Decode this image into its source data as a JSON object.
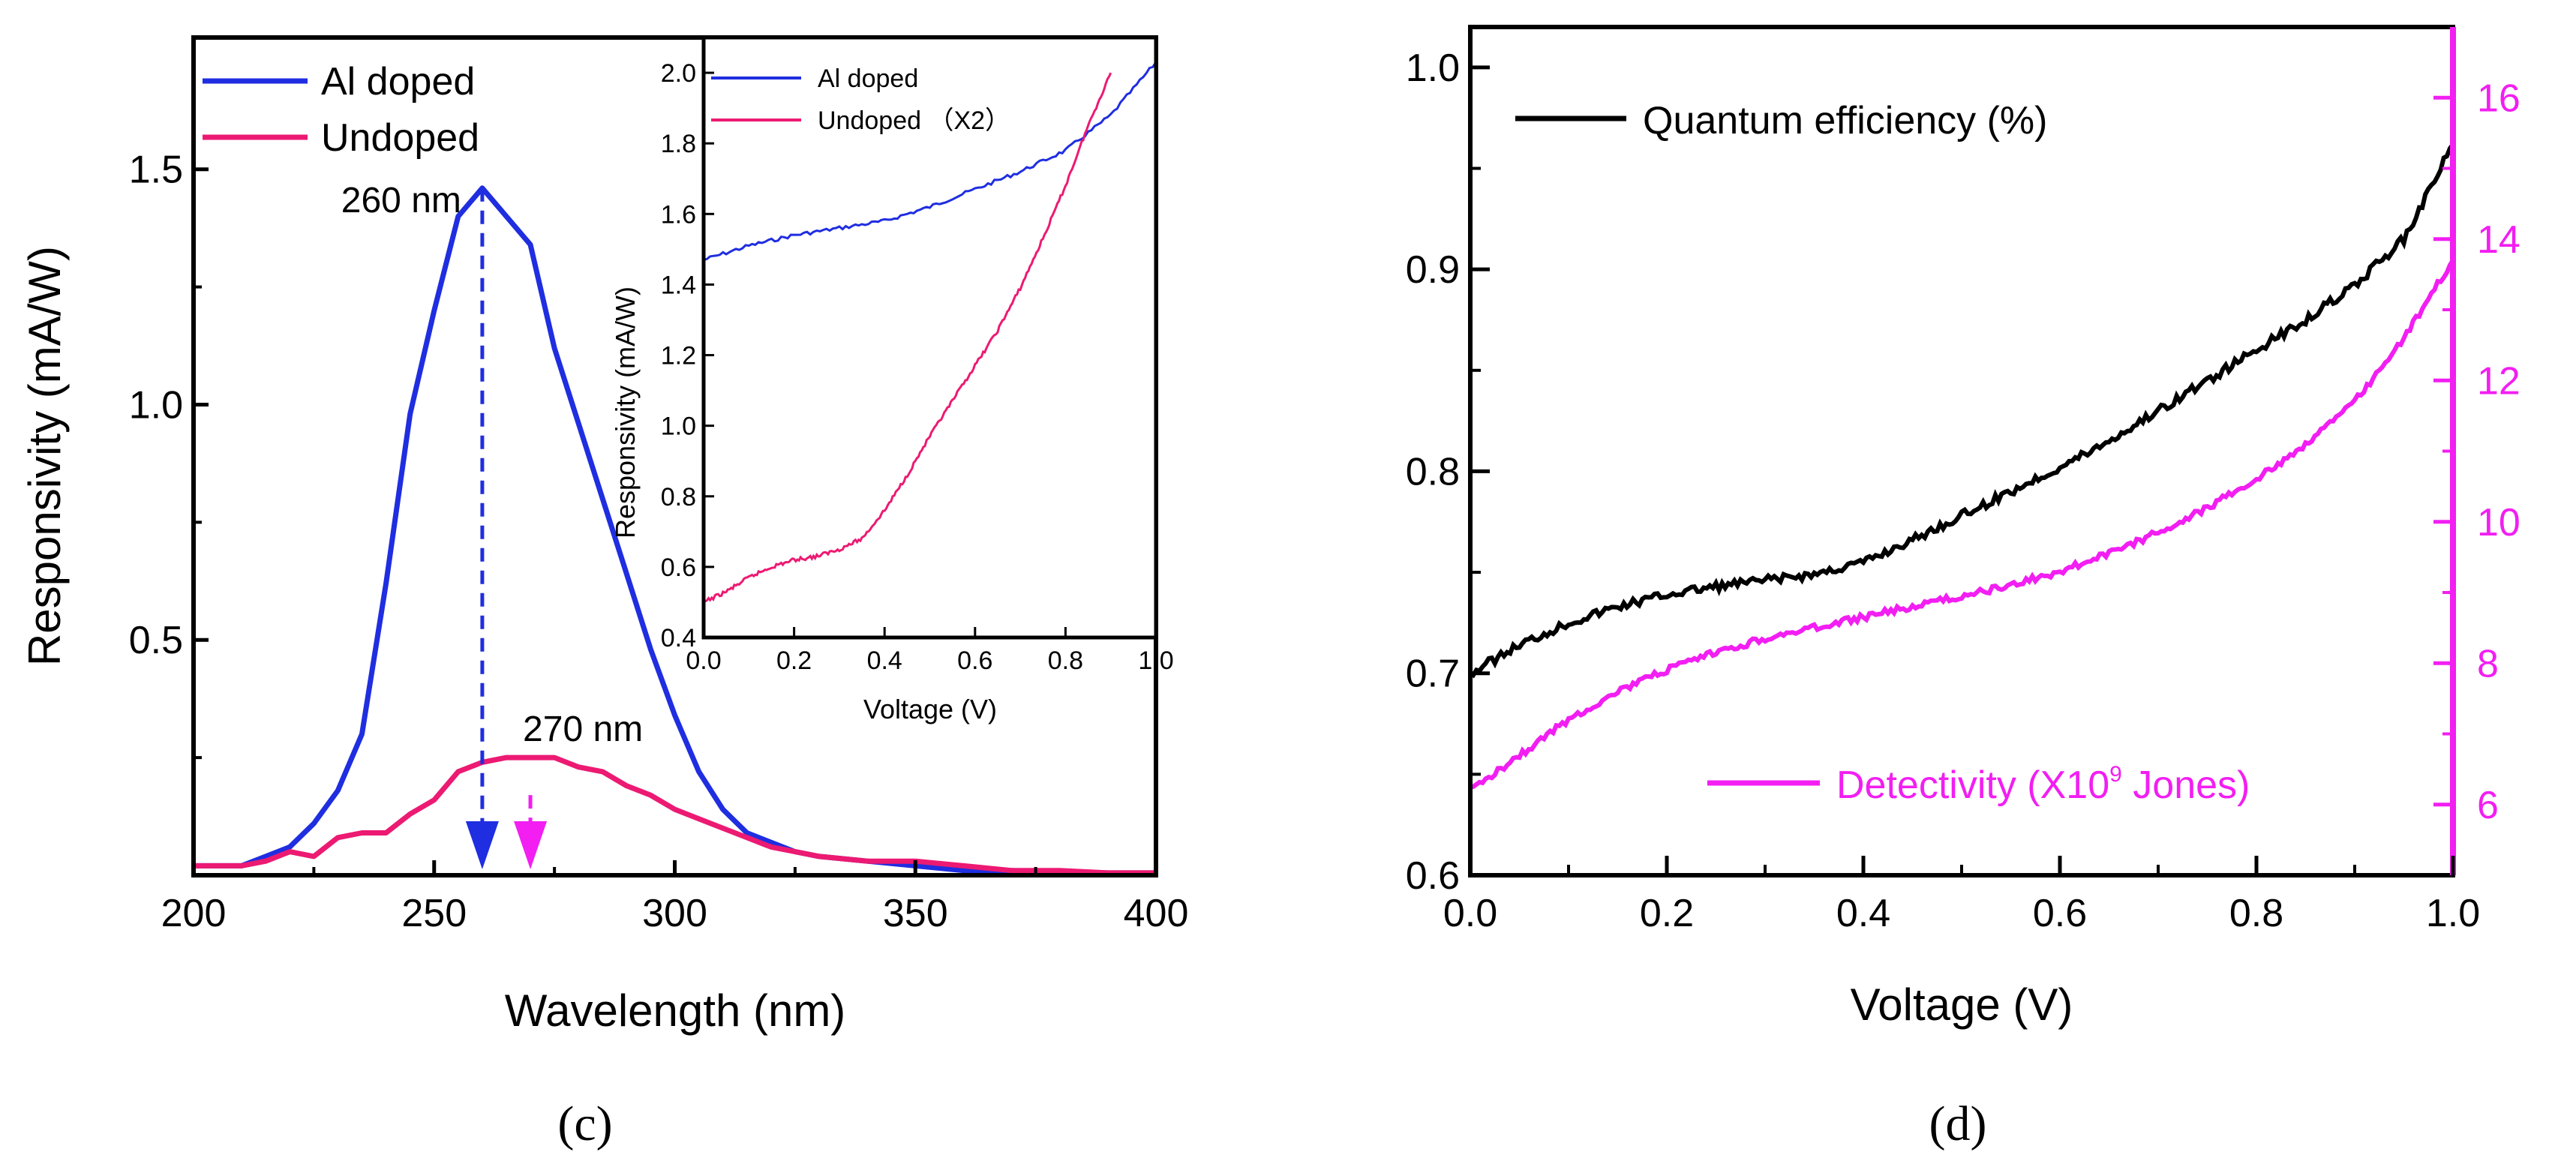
{
  "colors": {
    "blue": "#1f2ee0",
    "pink": "#ec1a72",
    "magenta": "#f21ef2",
    "black": "#000000"
  },
  "chart_data": [
    {
      "id": "c_main",
      "type": "line",
      "panel_label": "(c)",
      "xlabel": "Wavelength (nm)",
      "ylabel": "Responsivity (mA/W)",
      "xlim": [
        200,
        400
      ],
      "ylim": [
        0,
        1.78
      ],
      "xticks": [
        200,
        250,
        300,
        350,
        400
      ],
      "yticks": [
        0.5,
        1.0,
        1.5
      ],
      "xtick_labels": [
        "200",
        "250",
        "300",
        "350",
        "400"
      ],
      "ytick_labels": [
        "0.5",
        "1.0",
        "1.5"
      ],
      "annotations": [
        {
          "text": "260 nm",
          "x": 260,
          "y": 1.46,
          "color": "#1f2ee0"
        },
        {
          "text": "270 nm",
          "x": 270,
          "y": 0.25,
          "color": "#f21ef2"
        }
      ],
      "series": [
        {
          "name": "Al doped",
          "color": "#1f2ee0",
          "x": [
            200,
            205,
            210,
            215,
            220,
            225,
            230,
            235,
            240,
            245,
            250,
            255,
            260,
            265,
            270,
            275,
            280,
            285,
            290,
            295,
            300,
            305,
            310,
            315,
            320,
            325,
            330,
            340,
            350,
            360,
            370,
            380,
            390,
            400
          ],
          "y": [
            0.02,
            0.02,
            0.02,
            0.04,
            0.06,
            0.11,
            0.18,
            0.3,
            0.62,
            0.98,
            1.2,
            1.4,
            1.46,
            1.4,
            1.34,
            1.12,
            0.96,
            0.8,
            0.64,
            0.48,
            0.34,
            0.22,
            0.14,
            0.09,
            0.07,
            0.05,
            0.04,
            0.03,
            0.02,
            0.01,
            0.01,
            0.005,
            0.005,
            0.005
          ]
        },
        {
          "name": "Undoped",
          "color": "#ec1a72",
          "x": [
            200,
            205,
            210,
            215,
            220,
            225,
            230,
            235,
            240,
            245,
            250,
            255,
            260,
            265,
            270,
            275,
            280,
            285,
            290,
            295,
            300,
            305,
            310,
            315,
            320,
            325,
            330,
            340,
            350,
            360,
            370,
            380,
            390,
            400
          ],
          "y": [
            0.02,
            0.02,
            0.02,
            0.03,
            0.05,
            0.04,
            0.08,
            0.09,
            0.09,
            0.13,
            0.16,
            0.22,
            0.24,
            0.25,
            0.25,
            0.25,
            0.23,
            0.22,
            0.19,
            0.17,
            0.14,
            0.12,
            0.1,
            0.08,
            0.06,
            0.05,
            0.04,
            0.03,
            0.03,
            0.02,
            0.01,
            0.01,
            0.005,
            0.005
          ]
        }
      ]
    },
    {
      "id": "c_inset",
      "type": "line",
      "xlabel": "Voltage (V)",
      "ylabel": "Responsivity (mA/W)",
      "xlim": [
        0,
        1.0
      ],
      "ylim": [
        0.4,
        2.1
      ],
      "xticks": [
        0,
        0.2,
        0.4,
        0.6,
        0.8,
        1.0
      ],
      "yticks": [
        0.4,
        0.6,
        0.8,
        1.0,
        1.2,
        1.4,
        1.6,
        1.8,
        2.0
      ],
      "xtick_labels": [
        "0.0",
        "0.2",
        "0.4",
        "0.6",
        "0.8",
        "1.0"
      ],
      "ytick_labels": [
        "0.4",
        "0.6",
        "0.8",
        "1.0",
        "1.2",
        "1.4",
        "1.6",
        "1.8",
        "2.0"
      ],
      "series": [
        {
          "name": "Al doped",
          "color": "#1f2ee0",
          "x": [
            0,
            0.1,
            0.2,
            0.3,
            0.4,
            0.5,
            0.6,
            0.7,
            0.8,
            0.9,
            1.0
          ],
          "y": [
            1.47,
            1.51,
            1.54,
            1.56,
            1.58,
            1.62,
            1.67,
            1.72,
            1.78,
            1.88,
            2.03
          ]
        },
        {
          "name": "Undoped （X2）",
          "color": "#ec1a72",
          "x": [
            0,
            0.05,
            0.1,
            0.15,
            0.2,
            0.25,
            0.3,
            0.35,
            0.4,
            0.45,
            0.5,
            0.55,
            0.6,
            0.65,
            0.7,
            0.75,
            0.8,
            0.85,
            0.9
          ],
          "y": [
            0.5,
            0.53,
            0.57,
            0.6,
            0.62,
            0.63,
            0.65,
            0.68,
            0.76,
            0.86,
            0.97,
            1.07,
            1.17,
            1.27,
            1.39,
            1.53,
            1.68,
            1.85,
            2.0
          ]
        }
      ]
    },
    {
      "id": "d_main",
      "type": "line",
      "panel_label": "(d)",
      "xlabel": "Voltage (V)",
      "xlim": [
        0,
        1.0
      ],
      "ylim": [
        0.6,
        1.02
      ],
      "y2lim": [
        5,
        17
      ],
      "xticks": [
        0,
        0.2,
        0.4,
        0.6,
        0.8,
        1.0
      ],
      "yticks": [
        0.6,
        0.7,
        0.8,
        0.9,
        1.0
      ],
      "y2ticks": [
        6,
        8,
        10,
        12,
        14,
        16
      ],
      "xtick_labels": [
        "0.0",
        "0.2",
        "0.4",
        "0.6",
        "0.8",
        "1.0"
      ],
      "ytick_labels": [
        "0.6",
        "0.7",
        "0.8",
        "0.9",
        "1.0"
      ],
      "y2tick_labels": [
        "6",
        "8",
        "10",
        "12",
        "14",
        "16"
      ],
      "series": [
        {
          "name": "Quantum efficiency (%)",
          "color": "#000000",
          "axis": "left",
          "x": [
            0,
            0.05,
            0.1,
            0.15,
            0.2,
            0.25,
            0.3,
            0.35,
            0.4,
            0.45,
            0.5,
            0.55,
            0.6,
            0.65,
            0.7,
            0.75,
            0.8,
            0.85,
            0.9,
            0.95,
            1.0
          ],
          "y": [
            0.7,
            0.714,
            0.725,
            0.733,
            0.739,
            0.743,
            0.746,
            0.749,
            0.755,
            0.766,
            0.778,
            0.79,
            0.802,
            0.815,
            0.83,
            0.845,
            0.86,
            0.875,
            0.892,
            0.915,
            0.962
          ]
        },
        {
          "name": "Detectivity (X10",
          "sup": "9",
          "suffix": " Jones)",
          "color": "#f21ef2",
          "axis": "right",
          "x": [
            0,
            0.05,
            0.1,
            0.15,
            0.2,
            0.25,
            0.3,
            0.35,
            0.4,
            0.45,
            0.5,
            0.55,
            0.6,
            0.65,
            0.7,
            0.75,
            0.8,
            0.85,
            0.9,
            0.95,
            1.0
          ],
          "y": [
            6.2,
            6.7,
            7.2,
            7.6,
            7.9,
            8.15,
            8.35,
            8.5,
            8.65,
            8.8,
            8.95,
            9.1,
            9.3,
            9.55,
            9.85,
            10.2,
            10.6,
            11.1,
            11.7,
            12.6,
            13.7
          ]
        }
      ]
    }
  ]
}
